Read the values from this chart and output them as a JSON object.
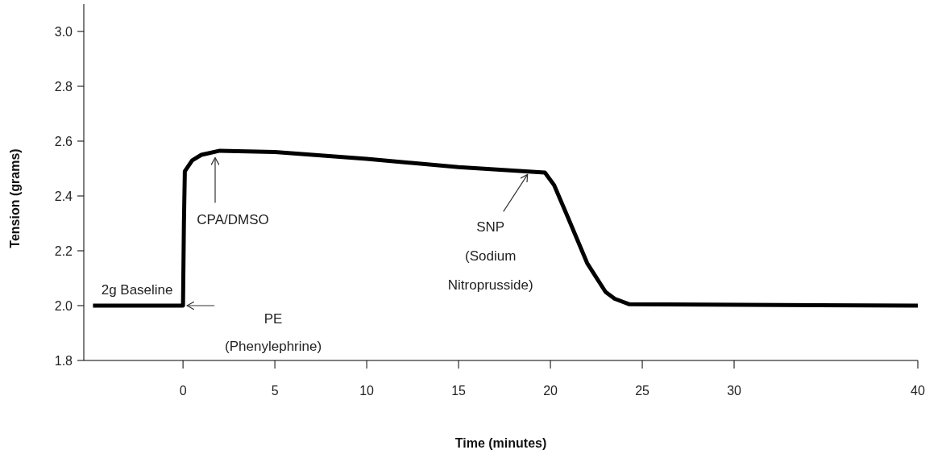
{
  "chart_data": {
    "type": "line",
    "xlabel": "Time (minutes)",
    "ylabel": "Tension (grams)",
    "xlim": [
      -5.4,
      40
    ],
    "xticks": [
      0,
      5,
      10,
      15,
      20,
      25,
      30,
      40
    ],
    "ylim": [
      1.8,
      3.1
    ],
    "yticks": [
      1.8,
      {
        "value": 2.0,
        "label": "2.0"
      },
      2.2,
      2.4,
      2.6,
      2.8,
      {
        "value": 3.0,
        "label": "3.0"
      }
    ],
    "series": [
      {
        "color": "#000000",
        "x": [
          -4.9,
          0,
          0.05,
          0.1,
          0.5,
          1,
          2,
          5,
          10,
          15,
          19.7,
          20.2,
          20.9,
          22,
          23,
          23.5,
          24.3,
          40
        ],
        "values": [
          2.0,
          2.0,
          2.3,
          2.49,
          2.53,
          2.55,
          2.565,
          2.56,
          2.535,
          2.505,
          2.485,
          2.44,
          2.33,
          2.155,
          2.05,
          2.025,
          2.005,
          2.0
        ]
      }
    ],
    "annotations": [
      {
        "text": "2g Baseline",
        "x": -2.5,
        "y": 2.0
      },
      {
        "text": "PE\n(Phenylephrine)",
        "x": 0,
        "y": 2.0
      },
      {
        "text": "CPA/DMSO",
        "x": 1.75,
        "y": 2.56
      },
      {
        "text": "SNP\n(Sodium\nNitroprusside)",
        "x": 18.8,
        "y": 2.49
      }
    ]
  }
}
